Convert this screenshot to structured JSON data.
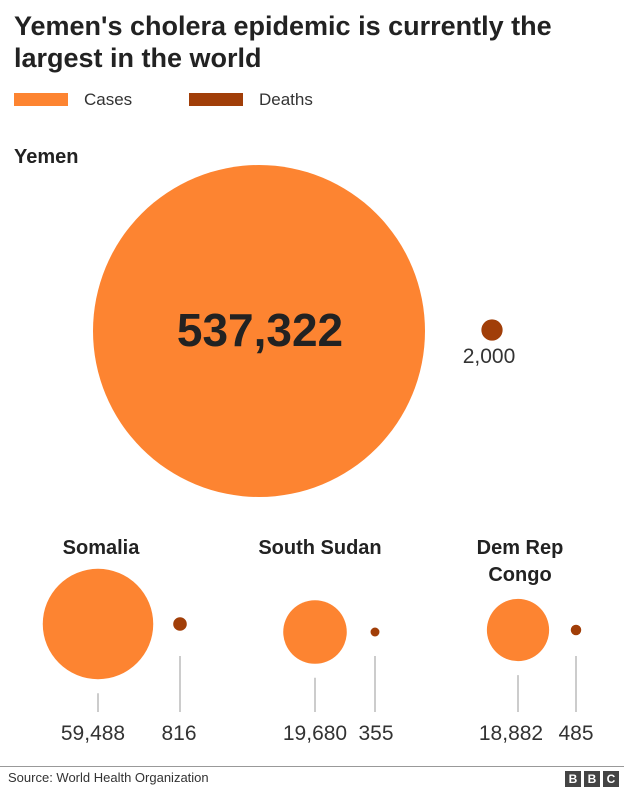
{
  "header": {
    "title": "Yemen's cholera epidemic is currently the largest in the world"
  },
  "legend": [
    {
      "label": "Cases",
      "color": "#fd8431"
    },
    {
      "label": "Deaths",
      "color": "#a13e08"
    }
  ],
  "chart_data": {
    "type": "bubble",
    "title": "Yemen's cholera epidemic is currently the largest in the world",
    "series": [
      {
        "name": "Cases",
        "color": "#fd8431"
      },
      {
        "name": "Deaths",
        "color": "#a13e08"
      }
    ],
    "countries": [
      {
        "name": "Yemen",
        "cases": 537322,
        "deaths": 2000,
        "cases_label": "537,322",
        "deaths_label": "2,000"
      },
      {
        "name": "Somalia",
        "cases": 59488,
        "deaths": 816,
        "cases_label": "59,488",
        "deaths_label": "816"
      },
      {
        "name": "South Sudan",
        "cases": 19680,
        "deaths": 355,
        "cases_label": "19,680",
        "deaths_label": "355"
      },
      {
        "name": "Dem Rep Congo",
        "cases": 18882,
        "deaths": 485,
        "cases_label": "18,882",
        "deaths_label": "485"
      }
    ]
  },
  "footer": {
    "source": "Source: World Health Organization",
    "logo": [
      "B",
      "B",
      "C"
    ]
  }
}
